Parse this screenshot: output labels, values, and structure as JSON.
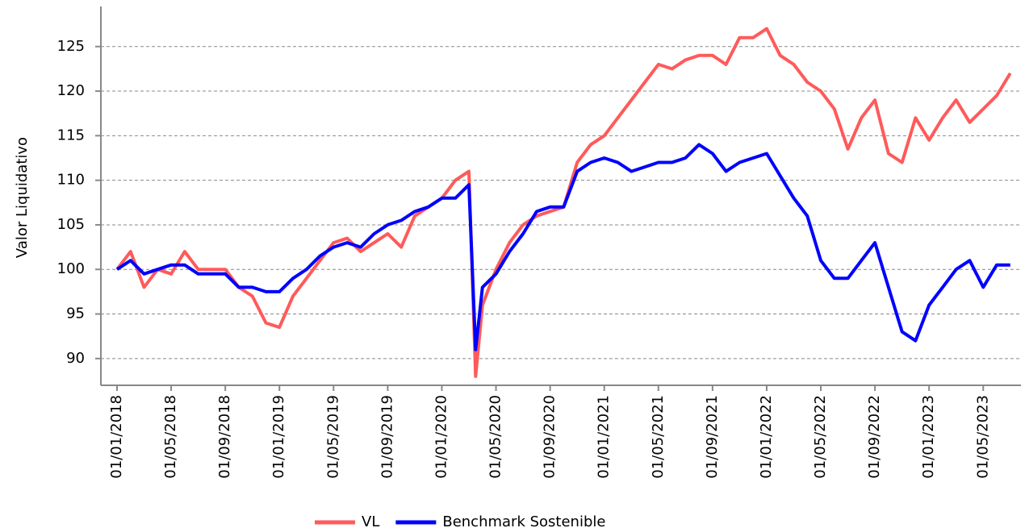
{
  "chart_data": {
    "type": "line",
    "y_label": "Valor Liquidativo",
    "x": [
      "01/01/2018",
      "01/02/2018",
      "01/03/2018",
      "01/04/2018",
      "01/05/2018",
      "01/06/2018",
      "01/07/2018",
      "01/08/2018",
      "01/09/2018",
      "01/10/2018",
      "01/11/2018",
      "01/12/2018",
      "01/01/2019",
      "01/02/2019",
      "01/03/2019",
      "01/04/2019",
      "01/05/2019",
      "01/06/2019",
      "01/07/2019",
      "01/08/2019",
      "01/09/2019",
      "01/10/2019",
      "01/11/2019",
      "01/12/2019",
      "01/01/2020",
      "01/02/2020",
      "01/03/2020",
      "16/03/2020",
      "01/04/2020",
      "01/05/2020",
      "01/06/2020",
      "01/07/2020",
      "01/08/2020",
      "01/09/2020",
      "01/10/2020",
      "01/11/2020",
      "01/12/2020",
      "01/01/2021",
      "01/02/2021",
      "01/03/2021",
      "01/04/2021",
      "01/05/2021",
      "01/06/2021",
      "01/07/2021",
      "01/08/2021",
      "01/09/2021",
      "01/10/2021",
      "01/11/2021",
      "01/12/2021",
      "01/01/2022",
      "01/02/2022",
      "01/03/2022",
      "01/04/2022",
      "01/05/2022",
      "01/06/2022",
      "01/07/2022",
      "01/08/2022",
      "01/09/2022",
      "01/10/2022",
      "01/11/2022",
      "01/12/2022",
      "01/01/2023",
      "01/02/2023",
      "01/03/2023",
      "01/04/2023",
      "01/05/2023",
      "01/06/2023",
      "01/07/2023"
    ],
    "series": [
      {
        "name": "VL",
        "color": "#ff5a5a",
        "values": [
          100,
          102,
          98,
          100,
          99.5,
          102,
          100,
          100,
          100,
          98,
          97,
          94,
          93.5,
          97,
          99,
          101,
          103,
          103.5,
          102,
          103,
          104,
          102.5,
          106,
          107,
          108,
          110,
          111,
          88,
          96,
          100,
          103,
          105,
          106,
          106.5,
          107,
          112,
          114,
          115,
          117,
          119,
          121,
          123,
          122.5,
          123.5,
          124,
          124,
          123,
          126,
          126,
          127,
          124,
          123,
          121,
          120,
          118,
          113.5,
          117,
          119,
          113,
          112,
          117,
          114.5,
          117,
          119,
          116.5,
          118,
          119.5,
          122
        ]
      },
      {
        "name": "Benchmark Sostenible",
        "color": "#0000ff",
        "values": [
          100,
          101,
          99.5,
          100,
          100.5,
          100.5,
          99.5,
          99.5,
          99.5,
          98,
          98,
          97.5,
          97.5,
          99,
          100,
          101.5,
          102.5,
          103,
          102.5,
          104,
          105,
          105.5,
          106.5,
          107,
          108,
          108,
          109.5,
          91,
          98,
          99.5,
          102,
          104,
          106.5,
          107,
          107,
          111,
          112,
          112.5,
          112,
          111,
          111.5,
          112,
          112,
          112.5,
          114,
          113,
          111,
          112,
          112.5,
          113,
          110.5,
          108,
          106,
          101,
          99,
          99,
          101,
          103,
          98,
          93,
          92,
          96,
          98,
          100,
          101,
          98,
          100.5,
          100.5
        ]
      }
    ],
    "ylim": [
      87,
      129.5
    ],
    "yticks": [
      90,
      95,
      100,
      105,
      110,
      115,
      120,
      125
    ],
    "xticks": [
      "01/01/2018",
      "01/05/2018",
      "01/09/2018",
      "01/01/2019",
      "01/05/2019",
      "01/09/2019",
      "01/01/2020",
      "01/05/2020",
      "01/09/2020",
      "01/01/2021",
      "01/05/2021",
      "01/09/2021",
      "01/01/2022",
      "01/05/2022",
      "01/09/2022",
      "01/01/2023",
      "01/05/2023"
    ],
    "grid": true
  }
}
